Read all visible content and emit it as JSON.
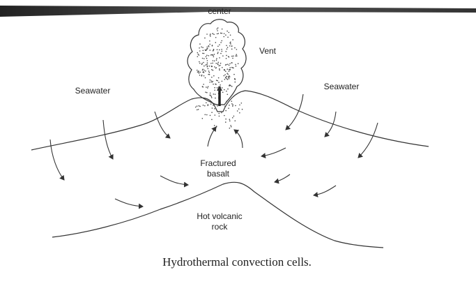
{
  "labels": {
    "center": "center",
    "vent": "Vent",
    "seawater_left": "Seawater",
    "seawater_right": "Seawater",
    "fractured_basalt": [
      "Fractured",
      "basalt"
    ],
    "hot_volcanic_rock": [
      "Hot volcanic",
      "rock"
    ]
  },
  "caption": "Hydrothermal convection cells."
}
